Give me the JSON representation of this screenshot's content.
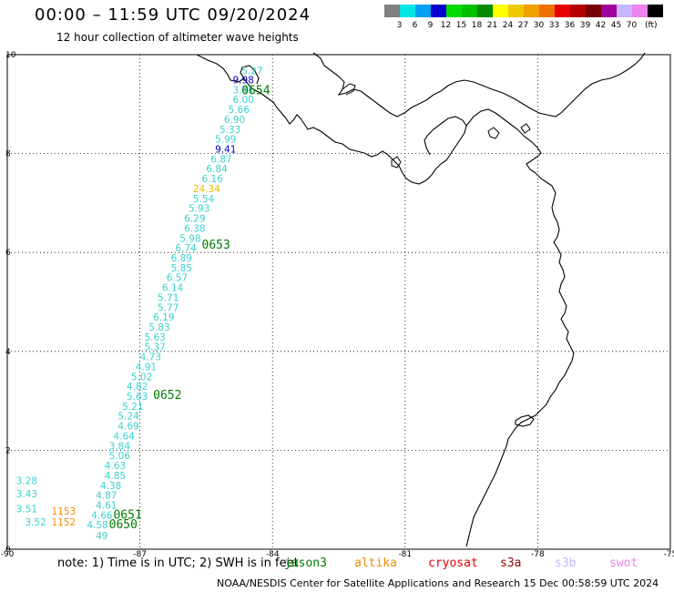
{
  "title": "00:00 – 11:59 UTC 09/20/2024",
  "subtitle": "12 hour collection of altimeter wave heights",
  "legend": {
    "labels": [
      "3",
      "6",
      "9",
      "12",
      "15",
      "18",
      "21",
      "24",
      "27",
      "30",
      "33",
      "36",
      "39",
      "42",
      "45",
      "70"
    ],
    "unit": "(ft)",
    "colors": [
      "#808080",
      "#00e6e6",
      "#00a0f0",
      "#0000d2",
      "#00dc00",
      "#00c000",
      "#008a00",
      "#ffff00",
      "#f0c800",
      "#f0a000",
      "#f07000",
      "#e60000",
      "#b40000",
      "#780000",
      "#a000a0",
      "#c8b4ff",
      "#ee82ee",
      "#000000"
    ]
  },
  "axes": {
    "x_ticks": [
      "-90",
      "-87",
      "-84",
      "-81",
      "-78",
      "-75"
    ],
    "y_ticks": [
      "0",
      "2",
      "4",
      "6",
      "8",
      "10"
    ],
    "xlim": [
      -90,
      -75
    ],
    "ylim": [
      0,
      10
    ]
  },
  "labels": [
    {
      "t": "5.27",
      "c": "#3ad0d0",
      "lon": -84.7,
      "lat": 9.6
    },
    {
      "t": "9.98",
      "c": "#0000cd",
      "lon": -84.9,
      "lat": 9.42
    },
    {
      "t": "3.41",
      "c": "#3ad0d0",
      "lon": -84.9,
      "lat": 9.22
    },
    {
      "t": "6.00",
      "c": "#3ad0d0",
      "lon": -84.9,
      "lat": 9.02
    },
    {
      "t": "5.66",
      "c": "#3ad0d0",
      "lon": -85.0,
      "lat": 8.82
    },
    {
      "t": "6.90",
      "c": "#3ad0d0",
      "lon": -85.1,
      "lat": 8.62
    },
    {
      "t": "5.33",
      "c": "#3ad0d0",
      "lon": -85.2,
      "lat": 8.42
    },
    {
      "t": "5.99",
      "c": "#3ad0d0",
      "lon": -85.3,
      "lat": 8.22
    },
    {
      "t": "9.41",
      "c": "#0000cd",
      "lon": -85.3,
      "lat": 8.02
    },
    {
      "t": "6.87",
      "c": "#3ad0d0",
      "lon": -85.4,
      "lat": 7.82
    },
    {
      "t": "6.84",
      "c": "#3ad0d0",
      "lon": -85.5,
      "lat": 7.62
    },
    {
      "t": "6.16",
      "c": "#3ad0d0",
      "lon": -85.6,
      "lat": 7.42
    },
    {
      "t": "24.34",
      "c": "#f0b400",
      "lon": -85.8,
      "lat": 7.22
    },
    {
      "t": "5.54",
      "c": "#3ad0d0",
      "lon": -85.8,
      "lat": 7.02
    },
    {
      "t": "5.93",
      "c": "#3ad0d0",
      "lon": -85.9,
      "lat": 6.82
    },
    {
      "t": "6.29",
      "c": "#3ad0d0",
      "lon": -86.0,
      "lat": 6.62
    },
    {
      "t": "6.38",
      "c": "#3ad0d0",
      "lon": -86.0,
      "lat": 6.42
    },
    {
      "t": "5.98",
      "c": "#3ad0d0",
      "lon": -86.1,
      "lat": 6.22
    },
    {
      "t": "6.74",
      "c": "#3ad0d0",
      "lon": -86.2,
      "lat": 6.02
    },
    {
      "t": "6.89",
      "c": "#3ad0d0",
      "lon": -86.3,
      "lat": 5.82
    },
    {
      "t": "5.85",
      "c": "#3ad0d0",
      "lon": -86.3,
      "lat": 5.62
    },
    {
      "t": "6.57",
      "c": "#3ad0d0",
      "lon": -86.4,
      "lat": 5.42
    },
    {
      "t": "6.14",
      "c": "#3ad0d0",
      "lon": -86.5,
      "lat": 5.22
    },
    {
      "t": "5.71",
      "c": "#3ad0d0",
      "lon": -86.6,
      "lat": 5.02
    },
    {
      "t": "5.77",
      "c": "#3ad0d0",
      "lon": -86.6,
      "lat": 4.82
    },
    {
      "t": "6.19",
      "c": "#3ad0d0",
      "lon": -86.7,
      "lat": 4.62
    },
    {
      "t": "5.83",
      "c": "#3ad0d0",
      "lon": -86.8,
      "lat": 4.42
    },
    {
      "t": "5.63",
      "c": "#3ad0d0",
      "lon": -86.9,
      "lat": 4.22
    },
    {
      "t": "5.37",
      "c": "#3ad0d0",
      "lon": -86.9,
      "lat": 4.02
    },
    {
      "t": "4.73",
      "c": "#3ad0d0",
      "lon": -87.0,
      "lat": 3.82
    },
    {
      "t": "4.91",
      "c": "#3ad0d0",
      "lon": -87.1,
      "lat": 3.62
    },
    {
      "t": "5.02",
      "c": "#3ad0d0",
      "lon": -87.2,
      "lat": 3.42
    },
    {
      "t": "4.82",
      "c": "#3ad0d0",
      "lon": -87.3,
      "lat": 3.22
    },
    {
      "t": "5.63",
      "c": "#3ad0d0",
      "lon": -87.3,
      "lat": 3.02
    },
    {
      "t": "5.21",
      "c": "#3ad0d0",
      "lon": -87.4,
      "lat": 2.82
    },
    {
      "t": "5.24",
      "c": "#3ad0d0",
      "lon": -87.5,
      "lat": 2.62
    },
    {
      "t": "4.69",
      "c": "#3ad0d0",
      "lon": -87.5,
      "lat": 2.42
    },
    {
      "t": "4.64",
      "c": "#3ad0d0",
      "lon": -87.6,
      "lat": 2.22
    },
    {
      "t": "3.84",
      "c": "#3ad0d0",
      "lon": -87.7,
      "lat": 2.02
    },
    {
      "t": "5.06",
      "c": "#3ad0d0",
      "lon": -87.7,
      "lat": 1.82
    },
    {
      "t": "4.63",
      "c": "#3ad0d0",
      "lon": -87.8,
      "lat": 1.62
    },
    {
      "t": "4.85",
      "c": "#3ad0d0",
      "lon": -87.8,
      "lat": 1.42
    },
    {
      "t": "4.38",
      "c": "#3ad0d0",
      "lon": -87.9,
      "lat": 1.22
    },
    {
      "t": "4.87",
      "c": "#3ad0d0",
      "lon": -88.0,
      "lat": 1.02
    },
    {
      "t": "4.61",
      "c": "#3ad0d0",
      "lon": -88.0,
      "lat": 0.82
    },
    {
      "t": "4.66",
      "c": "#3ad0d0",
      "lon": -88.1,
      "lat": 0.62
    },
    {
      "t": "4.58",
      "c": "#3ad0d0",
      "lon": -88.2,
      "lat": 0.42
    },
    {
      "t": "49",
      "c": "#3ad0d0",
      "lon": -88.0,
      "lat": 0.2
    },
    {
      "t": "3.28",
      "c": "#3ad0d0",
      "lon": -89.8,
      "lat": 1.32
    },
    {
      "t": "3.43",
      "c": "#3ad0d0",
      "lon": -89.8,
      "lat": 1.05
    },
    {
      "t": "3.51",
      "c": "#3ad0d0",
      "lon": -89.8,
      "lat": 0.75
    },
    {
      "t": "3.52",
      "c": "#3ad0d0",
      "lon": -89.6,
      "lat": 0.48
    },
    {
      "t": "1153",
      "c": "#f08c00",
      "lon": -89.0,
      "lat": 0.7
    },
    {
      "t": "1152",
      "c": "#f08c00",
      "lon": -89.0,
      "lat": 0.48
    }
  ],
  "times": [
    {
      "t": "0654",
      "lon": -84.7,
      "lat": 9.2
    },
    {
      "t": "0653",
      "lon": -85.6,
      "lat": 6.08
    },
    {
      "t": "0652",
      "lon": -86.7,
      "lat": 3.04
    },
    {
      "t": "0651",
      "lon": -87.6,
      "lat": 0.62
    },
    {
      "t": "0650",
      "lon": -87.7,
      "lat": 0.42
    }
  ],
  "footnote": {
    "note": "note:  1) Time is in UTC;  2) SWH is in feet",
    "missions": [
      {
        "name": "jason3",
        "color": "#007c00"
      },
      {
        "name": "altika",
        "color": "#f08c00"
      },
      {
        "name": "cryosat",
        "color": "#e60000"
      },
      {
        "name": "s3a",
        "color": "#9b0000"
      },
      {
        "name": "s3b",
        "color": "#c8b4ff"
      },
      {
        "name": "swot",
        "color": "#ee82ee"
      }
    ]
  },
  "credit": "NOAA/NESDIS Center for Satellite Applications and Research    15 Dec 00:58:59 UTC 2024"
}
